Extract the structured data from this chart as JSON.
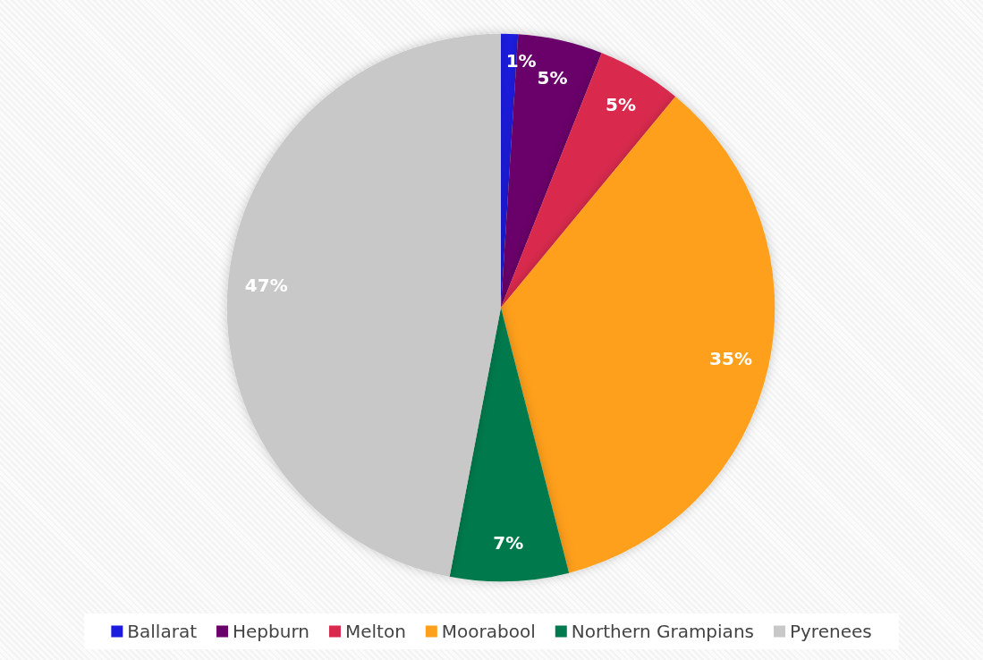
{
  "chart_data": {
    "type": "pie",
    "categories": [
      "Ballarat",
      "Hepburn",
      "Melton",
      "Moorabool",
      "Northern Grampians",
      "Pyrenees"
    ],
    "values": [
      1,
      5,
      5,
      35,
      7,
      47
    ],
    "value_labels": [
      "1%",
      "5%",
      "5%",
      "35%",
      "7%",
      "47%"
    ],
    "colors": [
      "#1c1ce0",
      "#6a006a",
      "#d92a4e",
      "#ffa01c",
      "#007a4e",
      "#c8c8c8"
    ],
    "legend": "bottom"
  }
}
